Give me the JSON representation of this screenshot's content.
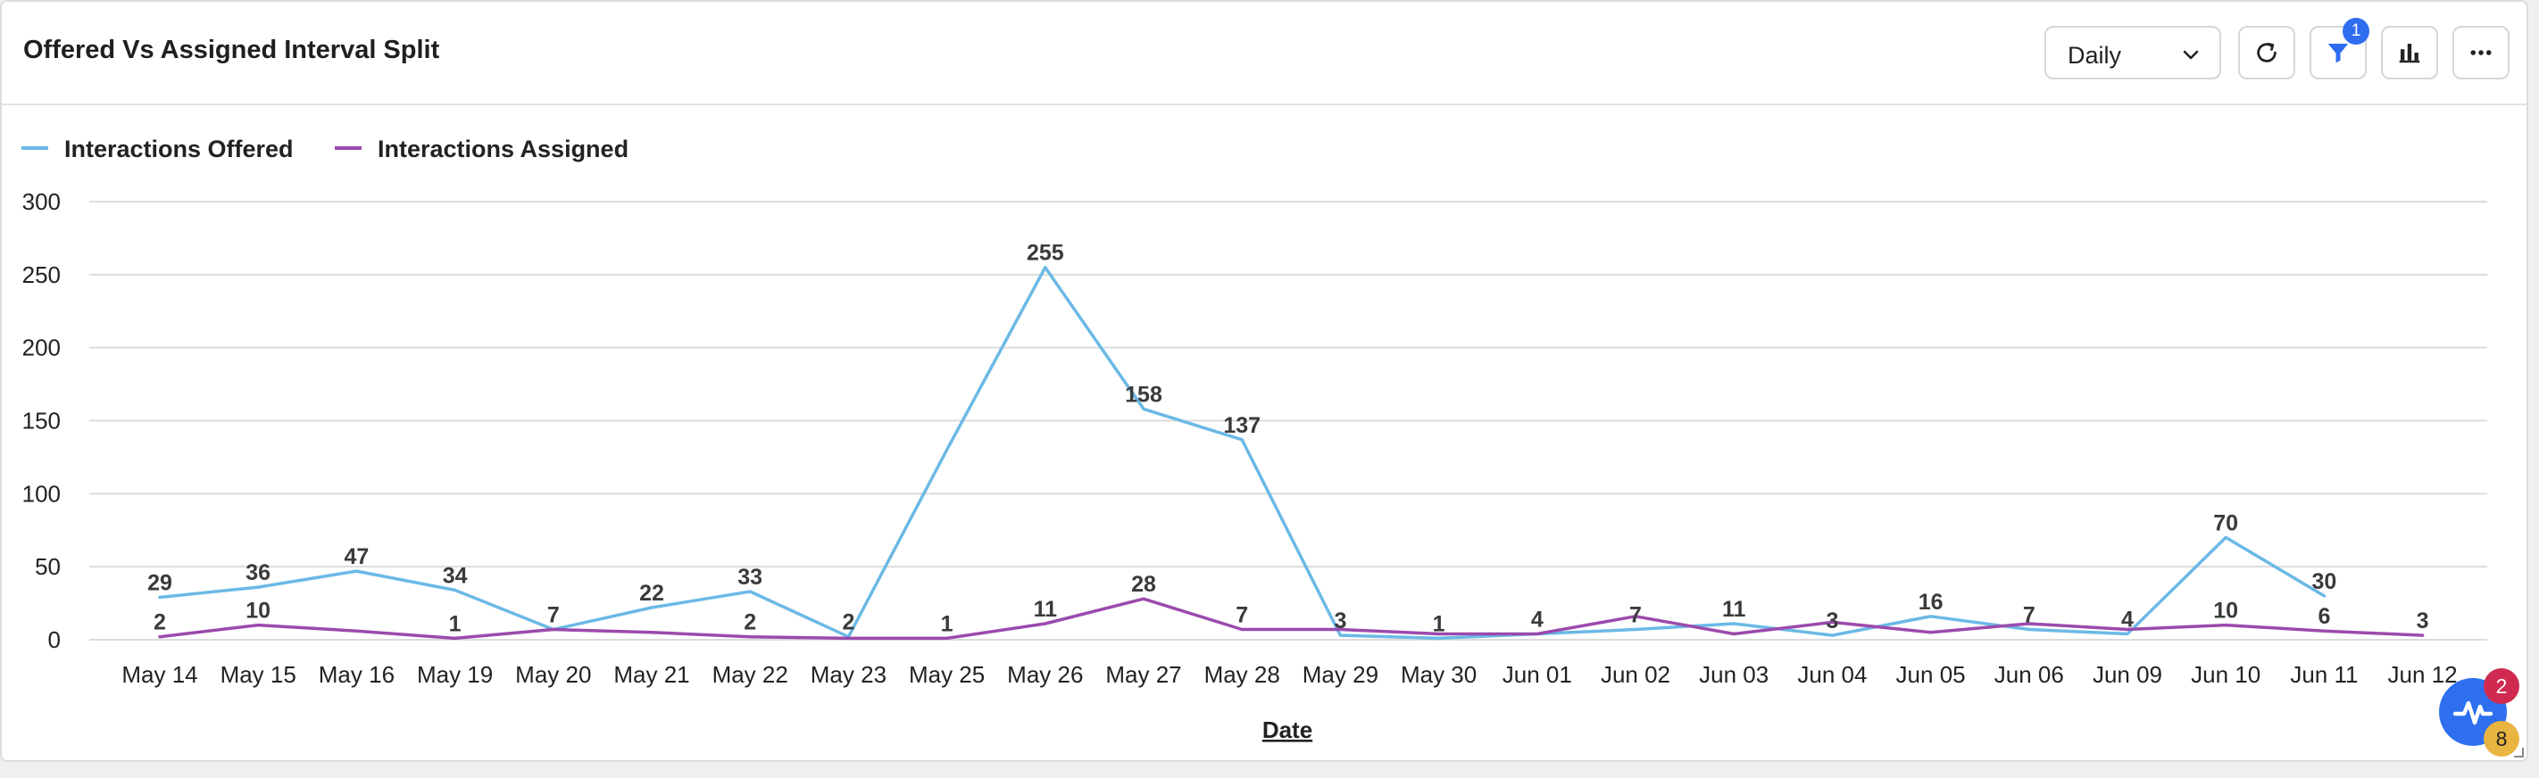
{
  "widget": {
    "title": "Offered Vs Assigned Interval Split",
    "interval_select": {
      "value": "Daily"
    },
    "buttons": [
      "refresh-icon",
      "filter-icon",
      "bar-chart-icon",
      "more-icon"
    ],
    "filter_badge": "1"
  },
  "status_widget": {
    "icon": "pulse-icon",
    "badge_a": "2",
    "badge_b": "8"
  },
  "colors": {
    "offered": "#6bb9e6",
    "assigned": "#9b4aad",
    "grid": "#dcdcdc",
    "filter_accent": "#2f6df0"
  },
  "chart_data": {
    "type": "line",
    "x": [
      "May 14",
      "May 15",
      "May 16",
      "May 19",
      "May 20",
      "May 21",
      "May 22",
      "May 23",
      "May 25",
      "May 26",
      "May 27",
      "May 28",
      "May 29",
      "May 30",
      "Jun 01",
      "Jun 02",
      "Jun 03",
      "Jun 04",
      "Jun 05",
      "Jun 06",
      "Jun 09",
      "Jun 10",
      "Jun 11",
      "Jun 12"
    ],
    "series": [
      {
        "name": "Interactions Offered",
        "values": [
          29,
          36,
          47,
          34,
          7,
          22,
          33,
          2,
          null,
          255,
          158,
          137,
          3,
          1,
          4,
          7,
          11,
          3,
          16,
          7,
          4,
          70,
          30,
          null
        ]
      },
      {
        "name": "Interactions Assigned",
        "values": [
          2,
          10,
          null,
          1,
          null,
          null,
          2,
          null,
          1,
          11,
          28,
          7,
          null,
          null,
          null,
          null,
          null,
          null,
          null,
          null,
          null,
          10,
          6,
          3
        ]
      }
    ],
    "line_points": [
      [
        29,
        36,
        47,
        34,
        7,
        22,
        33,
        2,
        130,
        255,
        158,
        137,
        3,
        1,
        4,
        7,
        11,
        3,
        16,
        7,
        4,
        70,
        30,
        null
      ],
      [
        2,
        10,
        6,
        1,
        7,
        5,
        2,
        1,
        1,
        11,
        28,
        7,
        7,
        4,
        4,
        16,
        4,
        12,
        5,
        11,
        7,
        10,
        6,
        3
      ]
    ],
    "xlabel": "Date",
    "ylabel": "",
    "ylim": [
      0,
      300
    ],
    "yticks": [
      0,
      50,
      100,
      150,
      200,
      250,
      300
    ],
    "grid": true,
    "legend": "top-left"
  }
}
